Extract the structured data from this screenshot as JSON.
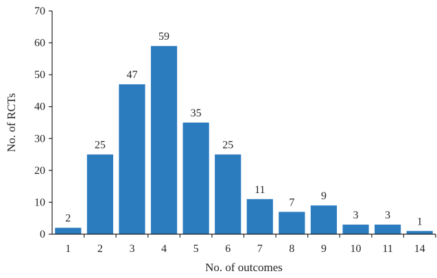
{
  "chart_data": {
    "type": "bar",
    "categories": [
      "1",
      "2",
      "3",
      "4",
      "5",
      "6",
      "7",
      "8",
      "9",
      "10",
      "11",
      "14"
    ],
    "values": [
      2,
      25,
      47,
      59,
      35,
      25,
      11,
      7,
      9,
      3,
      3,
      1
    ],
    "xlabel": "No. of outcomes",
    "ylabel": "No. of RCTs",
    "ylim": [
      0,
      70
    ],
    "yticks": [
      0,
      10,
      20,
      30,
      40,
      50,
      60,
      70
    ],
    "grid": false,
    "legend": "none",
    "bar_color": "#2b7bbf"
  }
}
